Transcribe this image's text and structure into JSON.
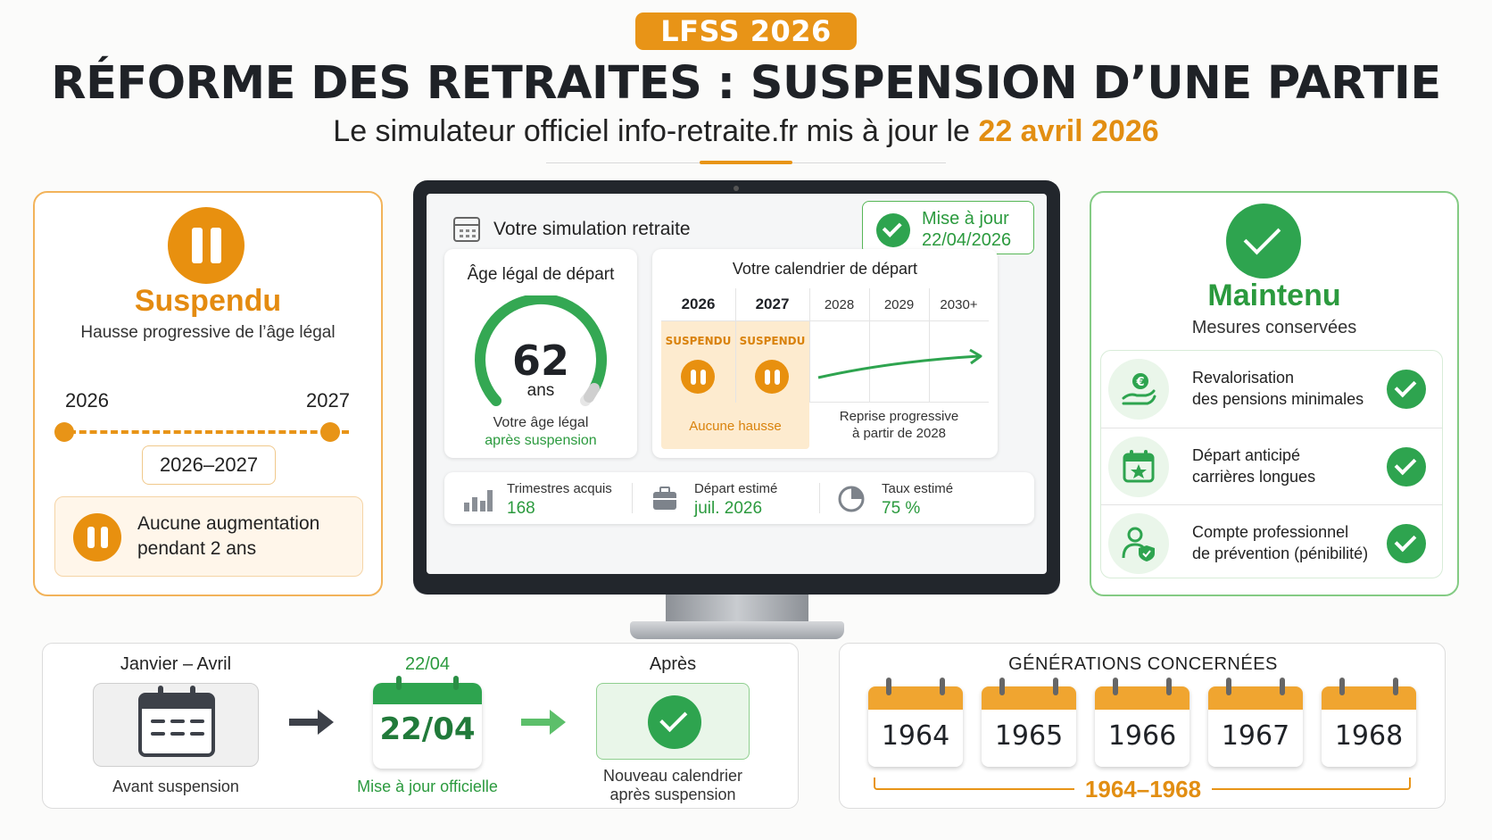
{
  "header": {
    "badge": "LFSS 2026",
    "title": "RÉFORME DES RETRAITES : SUSPENSION D’UNE PARTIE",
    "subtitle_prefix": "Le simulateur officiel info-retraite.fr mis à jour le ",
    "subtitle_date": "22 avril 2026"
  },
  "left_card": {
    "status": "Suspendu",
    "description": "Hausse progressive de l’âge légal",
    "start_year": "2026",
    "end_year": "2027",
    "period": "2026–2027",
    "note_line1": "Aucune augmentation",
    "note_line2": "pendant 2 ans"
  },
  "simulation": {
    "title": "Votre simulation retraite",
    "update_line1": "Mise à jour",
    "update_line2": "22/04/2026",
    "age_title": "Âge légal de départ",
    "age_value": "62",
    "age_unit": "ans",
    "age_caption1": "Votre âge légal",
    "age_caption2": "après suspension",
    "calendar_title": "Votre calendrier de départ",
    "years": [
      "2026",
      "2027",
      "2028",
      "2029",
      "2030+"
    ],
    "suspended_label": "SUSPENDU",
    "no_increase": "Aucune hausse",
    "resume_line1": "Reprise progressive",
    "resume_line2": "à partir de 2028",
    "stats": [
      {
        "label": "Trimestres acquis",
        "value": "168",
        "icon": "bar-chart-icon"
      },
      {
        "label": "Départ estimé",
        "value": "juil. 2026",
        "icon": "briefcase-icon"
      },
      {
        "label": "Taux estimé",
        "value": "75 %",
        "icon": "pie-chart-icon"
      }
    ]
  },
  "right_card": {
    "status": "Maintenu",
    "description": "Mesures conservées",
    "measures": [
      {
        "line1": "Revalorisation",
        "line2": "des pensions minimales",
        "icon": "euro-hand-icon"
      },
      {
        "line1": "Départ anticipé",
        "line2": "carrières longues",
        "icon": "calendar-star-icon"
      },
      {
        "line1": "Compte professionnel",
        "line2": "de prévention (pénibilité)",
        "icon": "person-shield-icon"
      }
    ]
  },
  "timeline": {
    "step1_head": "Janvier – Avril",
    "step1_caption": "Avant suspension",
    "step2_head": "22/04",
    "step2_date": "22/04",
    "step2_caption": "Mise à jour officielle",
    "step3_head": "Après",
    "step3_caption1": "Nouveau calendrier",
    "step3_caption2": "après suspension"
  },
  "generations": {
    "title": "GÉNÉRATIONS CONCERNÉES",
    "years": [
      "1964",
      "1965",
      "1966",
      "1967",
      "1968"
    ],
    "range": "1964–1968"
  },
  "colors": {
    "orange": "#e89417",
    "green": "#2ea44f",
    "dark": "#22262c"
  }
}
